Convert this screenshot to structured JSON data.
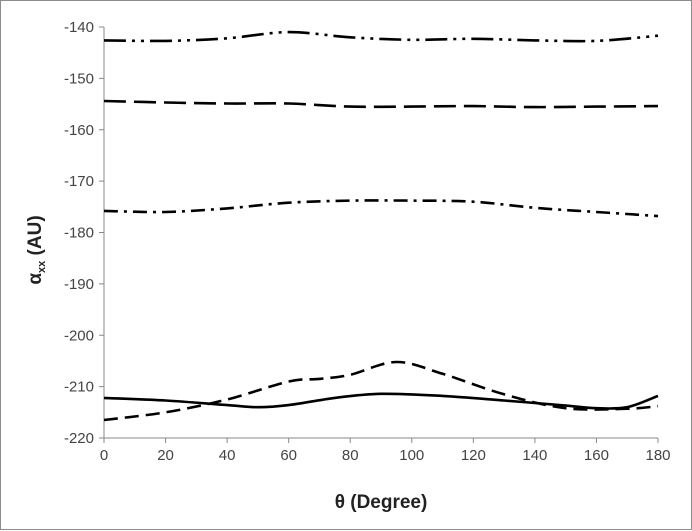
{
  "chart_data": {
    "type": "line",
    "title": "",
    "xlabel": "θ (Degree)",
    "ylabel_main": "α",
    "ylabel_sub": "xx",
    "ylabel_unit": " (AU)",
    "xlim": [
      0,
      180
    ],
    "ylim": [
      -220,
      -140
    ],
    "xticks": [
      0,
      20,
      40,
      60,
      80,
      100,
      120,
      140,
      160,
      180
    ],
    "yticks": [
      -140,
      -150,
      -160,
      -170,
      -180,
      -190,
      -200,
      -210,
      -220
    ],
    "grid": false,
    "legend": "none",
    "line_color": "#000000",
    "series": [
      {
        "style": "long-dash-dot",
        "x": [
          0,
          20,
          40,
          60,
          80,
          100,
          120,
          140,
          160,
          180
        ],
        "y": [
          -142.6,
          -142.7,
          -142.2,
          -141.0,
          -142.0,
          -142.5,
          -142.3,
          -142.6,
          -142.7,
          -141.7
        ]
      },
      {
        "style": "long-dash",
        "x": [
          0,
          20,
          40,
          60,
          80,
          100,
          120,
          140,
          160,
          180
        ],
        "y": [
          -154.4,
          -154.7,
          -154.9,
          -154.9,
          -155.5,
          -155.5,
          -155.4,
          -155.6,
          -155.5,
          -155.4
        ]
      },
      {
        "style": "dash-dot",
        "x": [
          0,
          20,
          40,
          60,
          80,
          100,
          120,
          140,
          160,
          180
        ],
        "y": [
          -175.8,
          -176.0,
          -175.3,
          -174.2,
          -173.8,
          -173.8,
          -174.0,
          -175.2,
          -176.0,
          -176.8
        ]
      },
      {
        "style": "dashed",
        "x": [
          0,
          20,
          40,
          60,
          70,
          80,
          95,
          110,
          130,
          150,
          170,
          180
        ],
        "y": [
          -216.5,
          -215.0,
          -212.5,
          -209.0,
          -208.5,
          -207.7,
          -205.2,
          -207.5,
          -211.5,
          -214.2,
          -214.3,
          -213.8
        ]
      },
      {
        "style": "solid",
        "x": [
          0,
          20,
          40,
          50,
          60,
          75,
          90,
          110,
          130,
          150,
          160,
          170,
          180
        ],
        "y": [
          -212.2,
          -212.7,
          -213.6,
          -214.0,
          -213.6,
          -212.2,
          -211.4,
          -211.8,
          -212.7,
          -213.7,
          -214.2,
          -214.0,
          -211.8
        ]
      }
    ]
  }
}
